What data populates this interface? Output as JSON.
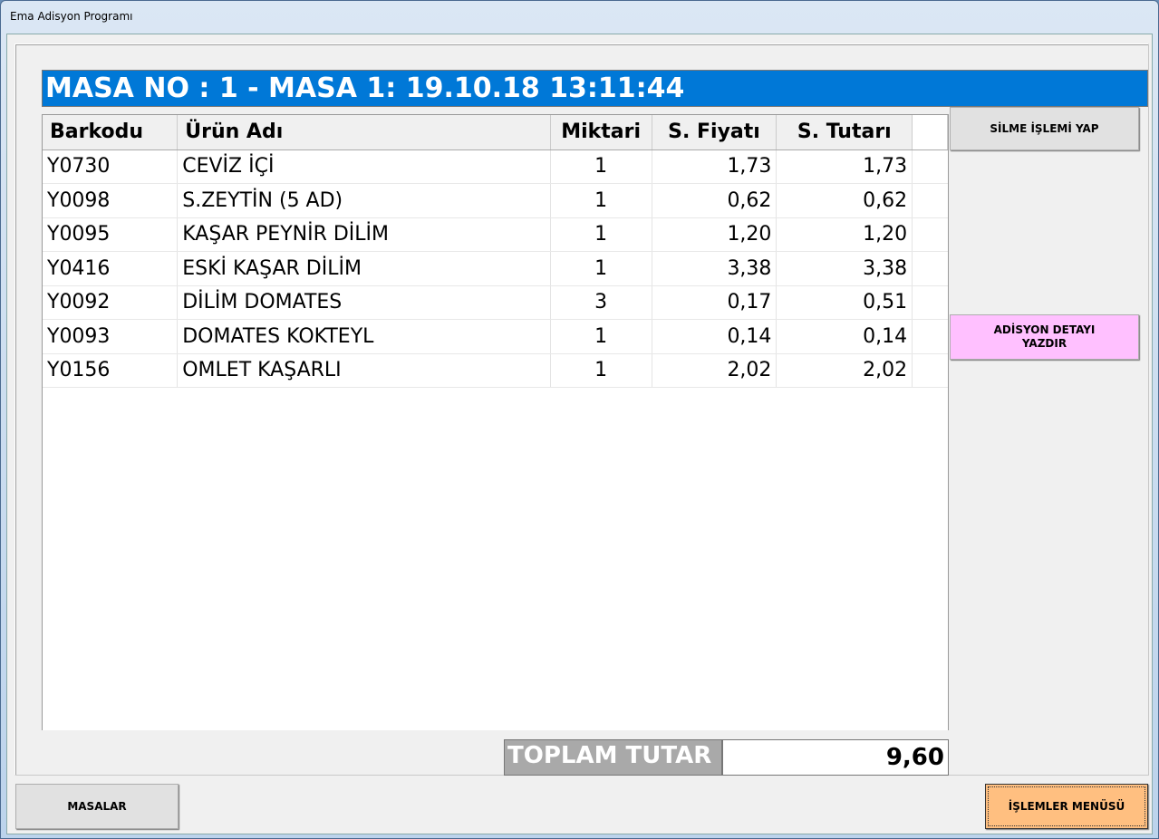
{
  "window": {
    "title": "Ema Adisyon Programı"
  },
  "header": {
    "title": "MASA NO : 1 - MASA 1: 19.10.18 13:11:44"
  },
  "table": {
    "columns": [
      "Barkodu",
      "Ürün Adı",
      "Miktari",
      "S. Fiyatı",
      "S. Tutarı"
    ],
    "rows": [
      [
        "Y0730",
        "CEVİZ İÇİ",
        "1",
        "1,73",
        "1,73"
      ],
      [
        "Y0098",
        "S.ZEYTİN (5 AD)",
        "1",
        "0,62",
        "0,62"
      ],
      [
        "Y0095",
        "KAŞAR PEYNİR DİLİM",
        "1",
        "1,20",
        "1,20"
      ],
      [
        "Y0416",
        "ESKİ KAŞAR DİLİM",
        "1",
        "3,38",
        "3,38"
      ],
      [
        "Y0092",
        "DİLİM DOMATES",
        "3",
        "0,17",
        "0,51"
      ],
      [
        "Y0093",
        "DOMATES KOKTEYL",
        "1",
        "0,14",
        "0,14"
      ],
      [
        "Y0156",
        "OMLET KAŞARLI",
        "1",
        "2,02",
        "2,02"
      ]
    ]
  },
  "buttons": {
    "delete": "SİLME İŞLEMİ YAP",
    "print": "ADİSYON DETAYI YAZDIR",
    "tables": "MASALAR",
    "menu": "İŞLEMLER MENÜSÜ"
  },
  "total": {
    "label": "TOPLAM TUTAR",
    "value": "9,60"
  },
  "colors": {
    "header": "#0078d7",
    "print_button": "#ffc0ff",
    "menu_button": "#ffbf80",
    "total_label": "#a9a9a9"
  }
}
